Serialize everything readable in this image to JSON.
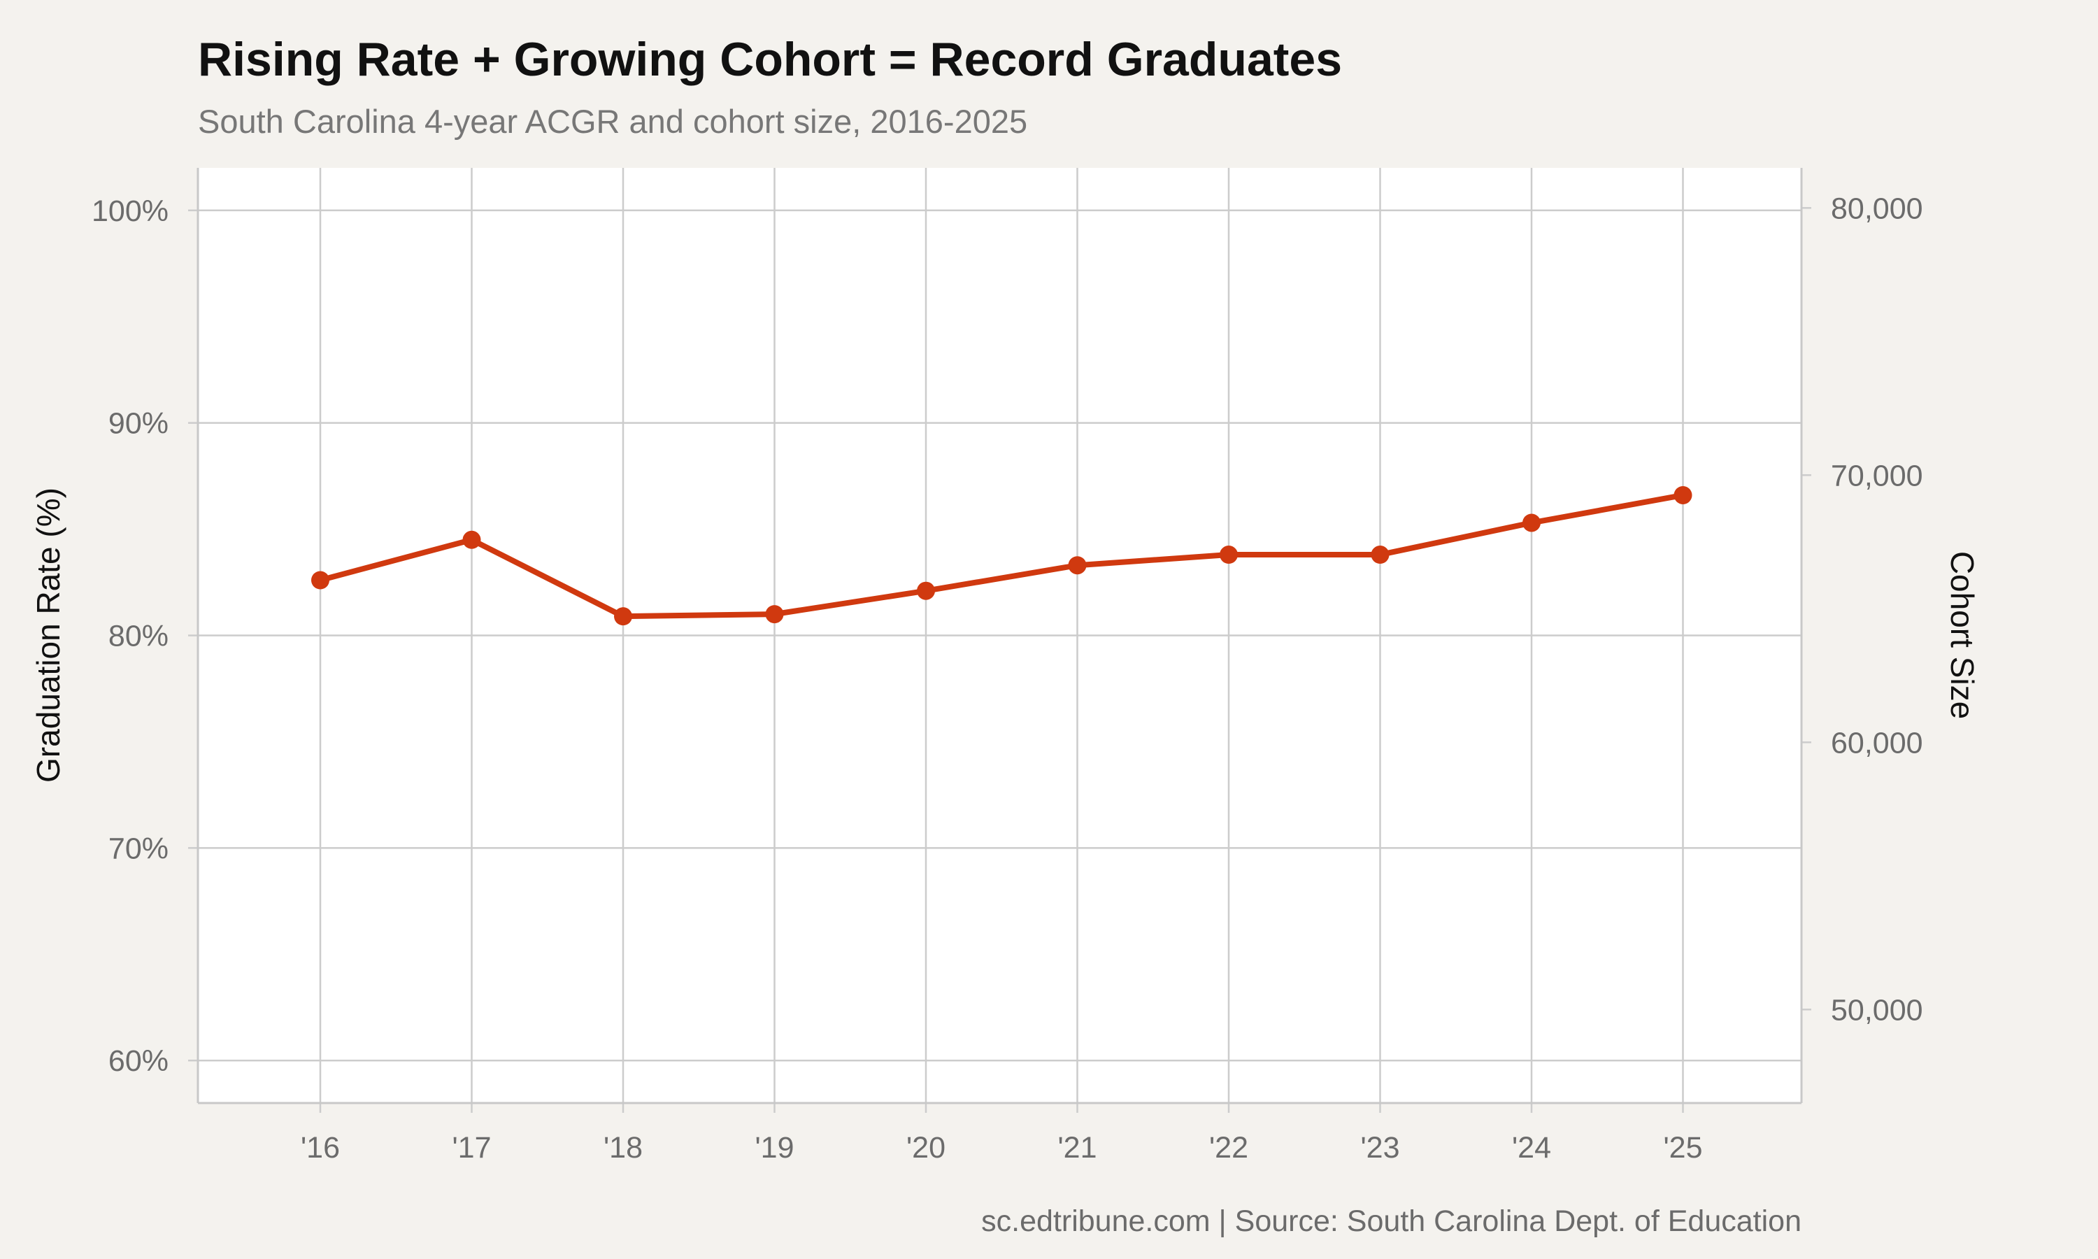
{
  "chart_data": {
    "type": "line",
    "title": "Rising Rate + Growing Cohort = Record Graduates",
    "subtitle": "South Carolina 4-year ACGR and cohort size, 2016-2025",
    "caption": "sc.edtribune.com | Source: South Carolina Dept. of Education",
    "x": [
      "'16",
      "'17",
      "'18",
      "'19",
      "'20",
      "'21",
      "'22",
      "'23",
      "'24",
      "'25"
    ],
    "series": [
      {
        "values": [
          82.6,
          84.5,
          80.9,
          81.0,
          82.1,
          83.3,
          83.8,
          83.8,
          85.3,
          86.6
        ]
      }
    ],
    "ylabel": "Graduation Rate (%)",
    "ylim": [
      58,
      102
    ],
    "y_ticks": [
      "60%",
      "70%",
      "80%",
      "90%",
      "100%"
    ],
    "y2label": "Cohort Size",
    "y2lim": [
      46500,
      81500
    ],
    "y2_ticks": [
      "50,000",
      "60,000",
      "70,000",
      "80,000"
    ],
    "grid": true,
    "colors": {
      "line": "#d0390f",
      "background": "#f4f2ee",
      "panel": "#ffffff",
      "grid": "#cccccc"
    }
  }
}
